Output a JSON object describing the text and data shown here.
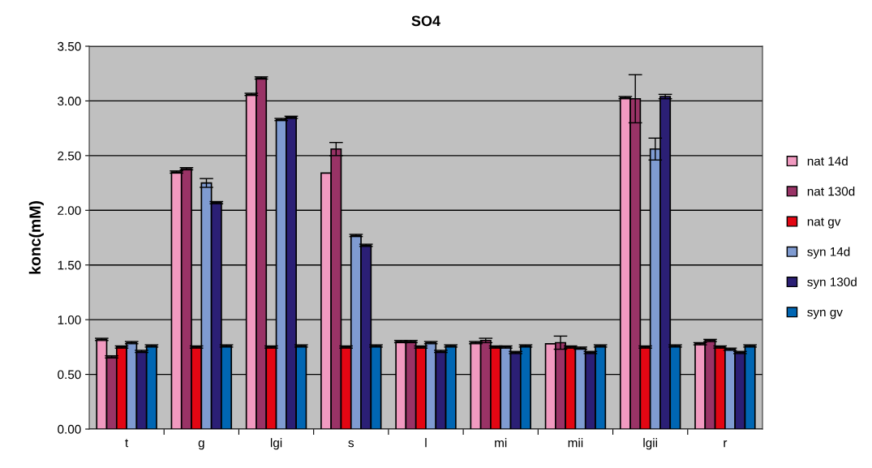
{
  "chart_data": {
    "type": "bar",
    "title": "SO4",
    "ylabel": "konc(mM)",
    "categories": [
      "t",
      "g",
      "lgi",
      "s",
      "l",
      "mi",
      "mii",
      "lgii",
      "r"
    ],
    "series": [
      {
        "name": "nat 14d",
        "color": "#f19ac0",
        "values": [
          0.82,
          2.35,
          3.06,
          2.34,
          0.8,
          0.79,
          0.78,
          3.03,
          0.78
        ],
        "errors": [
          0.01,
          0.01,
          0.01,
          null,
          0.01,
          0.01,
          null,
          0.01,
          0.01
        ]
      },
      {
        "name": "nat 130d",
        "color": "#993366",
        "values": [
          0.66,
          2.38,
          3.21,
          2.56,
          0.8,
          0.81,
          0.79,
          3.02,
          0.81
        ],
        "errors": [
          0.01,
          0.01,
          0.01,
          0.06,
          0.01,
          0.02,
          0.06,
          0.22,
          0.01
        ]
      },
      {
        "name": "nat gv",
        "color": "#e30613",
        "values": [
          0.75,
          0.75,
          0.75,
          0.75,
          0.75,
          0.75,
          0.75,
          0.75,
          0.75
        ],
        "errors": [
          0.01,
          0.01,
          0.01,
          0.01,
          0.01,
          0.01,
          0.01,
          0.01,
          0.01
        ]
      },
      {
        "name": "syn 14d",
        "color": "#7f9bd1",
        "values": [
          0.79,
          2.25,
          2.83,
          1.77,
          0.79,
          0.75,
          0.74,
          2.56,
          0.73
        ],
        "errors": [
          0.01,
          0.04,
          0.01,
          0.01,
          0.01,
          0.01,
          0.01,
          0.1,
          0.01
        ]
      },
      {
        "name": "syn 130d",
        "color": "#2b1f75",
        "values": [
          0.71,
          2.07,
          2.85,
          1.68,
          0.71,
          0.7,
          0.7,
          3.04,
          0.7
        ],
        "errors": [
          0.01,
          0.01,
          0.01,
          0.01,
          0.01,
          0.01,
          0.01,
          0.02,
          0.01
        ]
      },
      {
        "name": "syn gv",
        "color": "#0066b3",
        "values": [
          0.76,
          0.76,
          0.76,
          0.76,
          0.76,
          0.76,
          0.76,
          0.76,
          0.76
        ],
        "errors": [
          0.01,
          0.01,
          0.01,
          0.01,
          0.01,
          0.01,
          0.01,
          0.01,
          0.01
        ]
      }
    ],
    "ylim": [
      0,
      3.5
    ],
    "yticks": [
      {
        "value": 0,
        "label": "0.00"
      },
      {
        "value": 0.5,
        "label": "0.50"
      },
      {
        "value": 1,
        "label": "1.00"
      },
      {
        "value": 1.5,
        "label": "1.50"
      },
      {
        "value": 2,
        "label": "2.00"
      },
      {
        "value": 2.5,
        "label": "2.50"
      },
      {
        "value": 3,
        "label": "3.00"
      },
      {
        "value": 3.5,
        "label": "3.50"
      }
    ],
    "grid": "y",
    "legend": "right"
  }
}
